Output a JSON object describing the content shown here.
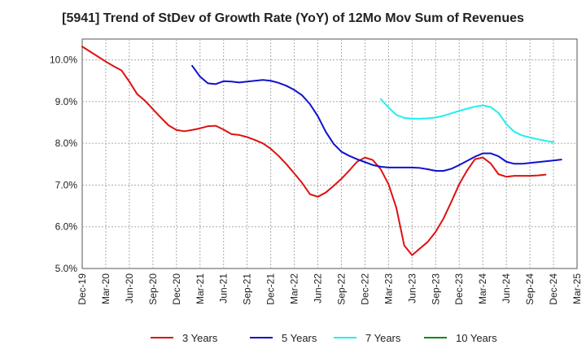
{
  "chart_data": {
    "type": "line",
    "title": "[5941]  Trend of StDev of Growth Rate (YoY) of 12Mo Mov Sum of Revenues",
    "xlabel": "",
    "ylabel": "",
    "ylim": [
      5.0,
      10.5
    ],
    "yticks": [
      5.0,
      6.0,
      7.0,
      8.0,
      9.0,
      10.0
    ],
    "ytick_labels": [
      "5.0%",
      "6.0%",
      "7.0%",
      "8.0%",
      "9.0%",
      "10.0%"
    ],
    "xtick_labels": [
      "Dec-19",
      "Mar-20",
      "Jun-20",
      "Sep-20",
      "Dec-20",
      "Mar-21",
      "Jun-21",
      "Sep-21",
      "Dec-21",
      "Mar-22",
      "Jun-22",
      "Sep-22",
      "Dec-22",
      "Mar-23",
      "Jun-23",
      "Sep-23",
      "Dec-23",
      "Mar-24",
      "Jun-24",
      "Sep-24",
      "Dec-24",
      "Mar-25"
    ],
    "grid": true,
    "legend_position": "bottom",
    "series": [
      {
        "name": "3 Years",
        "color": "#dd1111",
        "start_index": 0,
        "values": [
          10.32,
          10.2,
          10.08,
          9.96,
          9.85,
          9.75,
          9.48,
          9.18,
          9.02,
          8.82,
          8.62,
          8.43,
          8.32,
          8.29,
          8.32,
          8.36,
          8.41,
          8.42,
          8.33,
          8.22,
          8.2,
          8.15,
          8.08,
          8.0,
          7.87,
          7.7,
          7.5,
          7.28,
          7.05,
          6.78,
          6.72,
          6.82,
          6.98,
          7.15,
          7.35,
          7.56,
          7.66,
          7.6,
          7.38,
          7.02,
          6.45,
          5.55,
          5.32,
          5.48,
          5.64,
          5.88,
          6.2,
          6.6,
          7.02,
          7.35,
          7.62,
          7.66,
          7.52,
          7.26,
          7.2,
          7.22,
          7.22,
          7.22,
          7.23,
          7.25
        ]
      },
      {
        "name": "5 Years",
        "color": "#1111cc",
        "start_index": 14,
        "values": [
          9.86,
          9.6,
          9.44,
          9.42,
          9.49,
          9.48,
          9.46,
          9.48,
          9.5,
          9.52,
          9.5,
          9.45,
          9.38,
          9.28,
          9.15,
          8.94,
          8.65,
          8.28,
          7.99,
          7.8,
          7.7,
          7.62,
          7.55,
          7.48,
          7.44,
          7.42,
          7.42,
          7.42,
          7.42,
          7.41,
          7.38,
          7.34,
          7.34,
          7.39,
          7.48,
          7.58,
          7.68,
          7.76,
          7.76,
          7.69,
          7.56,
          7.51,
          7.51,
          7.53,
          7.55,
          7.57,
          7.59,
          7.61
        ]
      },
      {
        "name": "7 Years",
        "color": "#22eeee",
        "start_index": 38,
        "values": [
          9.06,
          8.86,
          8.68,
          8.61,
          8.59,
          8.59,
          8.6,
          8.62,
          8.66,
          8.72,
          8.78,
          8.83,
          8.88,
          8.91,
          8.87,
          8.73,
          8.46,
          8.28,
          8.19,
          8.14,
          8.1,
          8.06,
          8.03
        ]
      },
      {
        "name": "10 Years",
        "color": "#118811",
        "start_index": 0,
        "values": []
      }
    ]
  }
}
